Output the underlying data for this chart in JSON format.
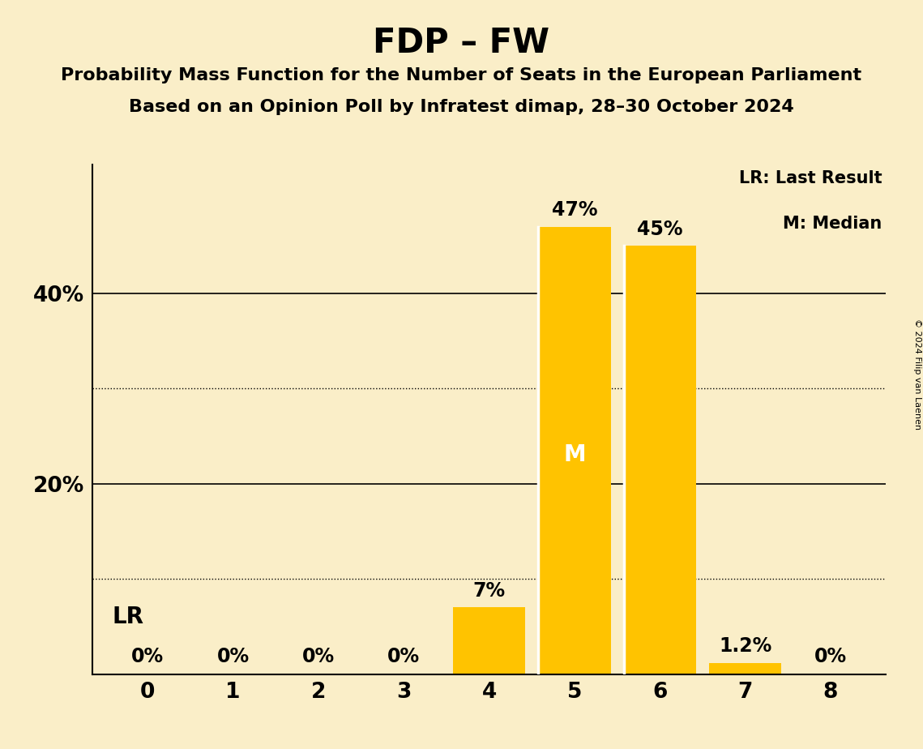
{
  "title": "FDP – FW",
  "subtitle1": "Probability Mass Function for the Number of Seats in the European Parliament",
  "subtitle2": "Based on an Opinion Poll by Infratest dimap, 28–30 October 2024",
  "copyright": "© 2024 Filip van Laenen",
  "seats": [
    0,
    1,
    2,
    3,
    4,
    5,
    6,
    7,
    8
  ],
  "probabilities": [
    0.0,
    0.0,
    0.0,
    0.0,
    0.07,
    0.47,
    0.45,
    0.012,
    0.0
  ],
  "bar_color": "#FFC300",
  "background_color": "#faeec8",
  "bar_labels": [
    "0%",
    "0%",
    "0%",
    "0%",
    "7%",
    "47%",
    "45%",
    "1.2%",
    "0%"
  ],
  "lr_seat": 5,
  "median_seat": 5,
  "ylim": [
    0,
    0.535
  ],
  "yticks": [
    0.0,
    0.2,
    0.4
  ],
  "ytick_labels": [
    "",
    "20%",
    "40%"
  ],
  "dotted_gridlines": [
    0.1,
    0.3
  ],
  "solid_gridlines": [
    0.2,
    0.4
  ],
  "legend_lr": "LR: Last Result",
  "legend_m": "M: Median",
  "lr_label": "LR",
  "median_label": "M",
  "title_fontsize": 30,
  "subtitle_fontsize": 16,
  "bar_label_fontsize": 17,
  "axis_label_fontsize": 19,
  "legend_fontsize": 15,
  "white_line_seats": [
    5,
    6
  ]
}
